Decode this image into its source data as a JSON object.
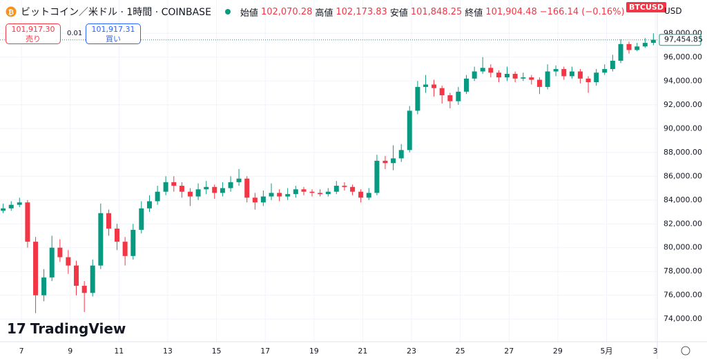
{
  "header": {
    "title": "ビットコイン／米ドル · 1時間 · COINBASE",
    "open_label": "始値",
    "open": "102,070.28",
    "high_label": "高値",
    "high": "102,173.83",
    "low_label": "安値",
    "low": "101,848.25",
    "close_label": "終値",
    "close": "101,904.48",
    "change": "−166.14 (−0.16%)",
    "sell_price": "101,917.30",
    "sell_label": "売り",
    "spread": "0.01",
    "buy_price": "101,917.31",
    "buy_label": "買い",
    "symbol_badge": "BTCUSD",
    "currency": "USD",
    "logo": "TradingView"
  },
  "chart_data": {
    "type": "candlestick",
    "up_color": "#089981",
    "down_color": "#f23645",
    "grid": true,
    "last_label": "97,454.85",
    "xlim": [
      6.12,
      33.08
    ],
    "ylim": [
      72100,
      100800
    ],
    "xticks": [
      7,
      9,
      11,
      13,
      15,
      17,
      19,
      21,
      23,
      25,
      27,
      29,
      {
        "value": 31,
        "label": "5月"
      },
      {
        "value": 33,
        "label": "3"
      }
    ],
    "yticks": [
      {
        "value": 74000,
        "label": "74,000.00"
      },
      {
        "value": 76000,
        "label": "76,000.00"
      },
      {
        "value": 78000,
        "label": "78,000.00"
      },
      {
        "value": 80000,
        "label": "80,000.00"
      },
      {
        "value": 82000,
        "label": "82,000.00"
      },
      {
        "value": 84000,
        "label": "84,000.00"
      },
      {
        "value": 86000,
        "label": "86,000.00"
      },
      {
        "value": 88000,
        "label": "88,000.00"
      },
      {
        "value": 90000,
        "label": "90,000.00"
      },
      {
        "value": 92000,
        "label": "92,000.00"
      },
      {
        "value": 94000,
        "label": "94,000.00"
      },
      {
        "value": 96000,
        "label": "96,000.00"
      },
      {
        "value": 98000,
        "label": "98,000.00"
      }
    ],
    "x": [
      6.25,
      6.58,
      6.92,
      7.25,
      7.58,
      7.92,
      8.25,
      8.58,
      8.92,
      9.25,
      9.58,
      9.92,
      10.25,
      10.58,
      10.92,
      11.25,
      11.58,
      11.92,
      12.25,
      12.58,
      12.92,
      13.25,
      13.58,
      13.92,
      14.25,
      14.58,
      14.92,
      15.25,
      15.58,
      15.92,
      16.25,
      16.58,
      16.92,
      17.25,
      17.58,
      17.92,
      18.25,
      18.58,
      18.92,
      19.25,
      19.58,
      19.92,
      20.25,
      20.58,
      20.92,
      21.25,
      21.58,
      21.92,
      22.25,
      22.58,
      22.92,
      23.25,
      23.58,
      23.92,
      24.25,
      24.58,
      24.92,
      25.25,
      25.58,
      25.92,
      26.25,
      26.58,
      26.92,
      27.25,
      27.58,
      27.92,
      28.25,
      28.58,
      28.92,
      29.25,
      29.58,
      29.92,
      30.25,
      30.58,
      30.92,
      31.25,
      31.58,
      31.92,
      32.25,
      32.58,
      32.92
    ],
    "open": [
      83100,
      83300,
      83600,
      83800,
      80500,
      76000,
      77500,
      80000,
      79200,
      78500,
      76800,
      76200,
      78500,
      82900,
      81600,
      80500,
      79300,
      81500,
      83300,
      83900,
      84700,
      85500,
      85200,
      84700,
      84300,
      84900,
      85100,
      84600,
      85000,
      85500,
      85800,
      84200,
      83800,
      84300,
      84600,
      84300,
      84500,
      84900,
      84700,
      84600,
      84500,
      84700,
      85200,
      85100,
      84700,
      84200,
      84600,
      87300,
      87100,
      87500,
      88200,
      91500,
      93500,
      93700,
      93400,
      92800,
      92300,
      93100,
      94200,
      94800,
      95100,
      94700,
      94300,
      94600,
      94200,
      94300,
      94100,
      93500,
      94800,
      95000,
      94400,
      94800,
      94200,
      93900,
      94700,
      95000,
      95700,
      97100,
      96600,
      96900,
      97200
    ],
    "high": [
      83700,
      83900,
      84200,
      84000,
      80900,
      78200,
      81000,
      80700,
      79800,
      78900,
      77200,
      79000,
      83700,
      83200,
      82000,
      80900,
      82000,
      83900,
      84400,
      85200,
      86000,
      86000,
      85500,
      85000,
      85400,
      85600,
      85300,
      85500,
      86000,
      86600,
      86000,
      84600,
      84800,
      85400,
      84900,
      85000,
      85200,
      85100,
      84900,
      84900,
      85000,
      85600,
      85500,
      85300,
      84900,
      85000,
      87800,
      87700,
      88600,
      88700,
      91900,
      94000,
      94500,
      94100,
      93600,
      93000,
      93500,
      94500,
      95200,
      96000,
      95400,
      94900,
      95200,
      94800,
      94700,
      94500,
      94300,
      95400,
      95300,
      95200,
      95200,
      95000,
      94400,
      95000,
      95400,
      96200,
      97500,
      97300,
      97200,
      97600,
      98000
    ],
    "low": [
      82900,
      83100,
      83400,
      80000,
      74500,
      75500,
      77200,
      78800,
      77800,
      76000,
      74600,
      75900,
      78200,
      81000,
      79800,
      78500,
      79000,
      81200,
      83000,
      83600,
      84400,
      84700,
      84200,
      83500,
      84000,
      84500,
      84100,
      84300,
      84700,
      85200,
      83800,
      83200,
      83500,
      84000,
      83900,
      84000,
      84200,
      84400,
      84300,
      84300,
      84300,
      84500,
      84800,
      84400,
      83800,
      84000,
      84400,
      86600,
      86500,
      87200,
      88000,
      91200,
      93000,
      92700,
      92100,
      91700,
      92000,
      92900,
      94000,
      94600,
      94300,
      93900,
      94000,
      93900,
      94000,
      93700,
      92900,
      93300,
      94400,
      94100,
      94200,
      93800,
      93000,
      93600,
      94500,
      94800,
      95500,
      96300,
      96500,
      96800,
      97000
    ],
    "close": [
      83300,
      83600,
      83800,
      80500,
      76000,
      77500,
      80000,
      79200,
      78500,
      76800,
      76200,
      78500,
      82900,
      81600,
      80500,
      79300,
      81500,
      83300,
      83900,
      84700,
      85500,
      85200,
      84700,
      84300,
      84900,
      85100,
      84600,
      85000,
      85500,
      85800,
      84200,
      83800,
      84300,
      84600,
      84300,
      84500,
      84900,
      84700,
      84600,
      84500,
      84700,
      85200,
      85100,
      84700,
      84200,
      84600,
      87300,
      87100,
      87500,
      88200,
      91500,
      93500,
      93700,
      93400,
      92800,
      92300,
      93100,
      94200,
      94800,
      95100,
      94700,
      94300,
      94600,
      94200,
      94300,
      94100,
      93500,
      94800,
      95000,
      94400,
      94800,
      94200,
      93900,
      94700,
      95000,
      95700,
      97100,
      96600,
      96900,
      97200,
      97454.85
    ]
  }
}
